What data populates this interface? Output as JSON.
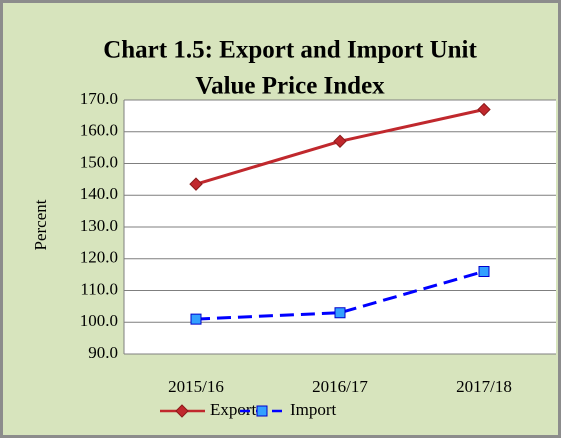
{
  "chart_data": {
    "type": "line",
    "title_lines": [
      "Chart 1.5: Export and Import Unit",
      "Value Price Index"
    ],
    "y_label": "Percent",
    "categories": [
      "2015/16",
      "2016/17",
      "2017/18"
    ],
    "series": [
      {
        "name": "Export",
        "color": "#c0282d",
        "marker": "diamond",
        "dash": "solid",
        "values": [
          143.5,
          157,
          167
        ]
      },
      {
        "name": "Import",
        "color": "#0000ff",
        "marker": "square",
        "dash": "dashed",
        "values": [
          101,
          103,
          116
        ]
      }
    ],
    "ylim": [
      90,
      170
    ],
    "yticks": [
      {
        "value": 90,
        "label": "90.0"
      },
      {
        "value": 100,
        "label": "100.0"
      },
      {
        "value": 110,
        "label": "110.0"
      },
      {
        "value": 120,
        "label": "120.0"
      },
      {
        "value": 130,
        "label": "130.0"
      },
      {
        "value": 140,
        "label": "140.0"
      },
      {
        "value": 150,
        "label": "150.0"
      },
      {
        "value": 160,
        "label": "160.0"
      },
      {
        "value": 170,
        "label": "170.0"
      }
    ],
    "grid": true
  }
}
